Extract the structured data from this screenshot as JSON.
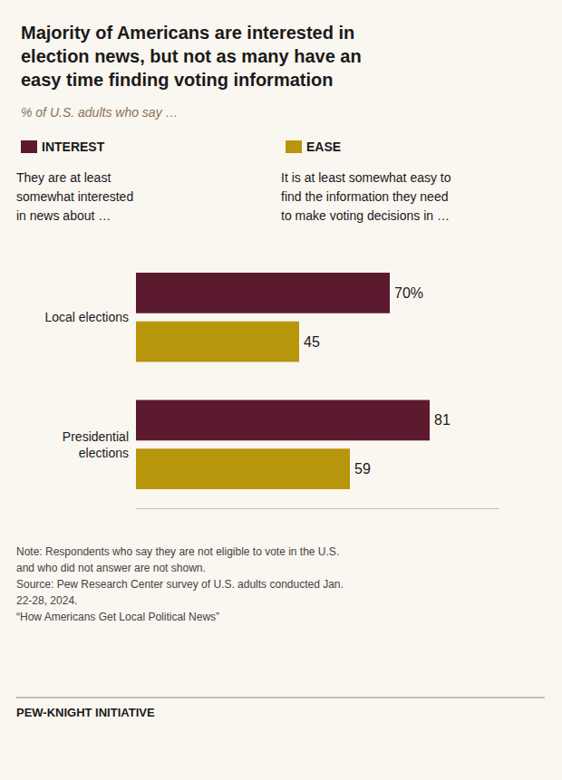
{
  "chart_data": {
    "type": "bar",
    "orientation": "horizontal",
    "title": "Majority of Americans are interested in\nelection news, but not as many have an\neasy time finding voting information",
    "subtitle": "% of U.S. adults who say …",
    "categories": [
      "Local elections",
      "Presidential\nelections"
    ],
    "series": [
      {
        "name": "INTEREST",
        "color": "#5C1A2E",
        "values": [
          70,
          81
        ],
        "value_labels": [
          "70%",
          "81"
        ]
      },
      {
        "name": "EASE",
        "color": "#B8960C",
        "values": [
          45,
          59
        ],
        "value_labels": [
          "45",
          "59"
        ]
      }
    ],
    "xlim": [
      0,
      100
    ],
    "data_labels": true,
    "tick_labels": "y",
    "grid": false,
    "legend": "top-left",
    "annotations": [
      "They are at least\nsomewhat interested\nin news about …",
      "It is at least somewhat easy to\nfind the information they need\nto make voting decisions in …",
      "Note: Respondents who say they are not eligible to vote in the U.S.\nand who did not answer are not shown.\nSource: Pew Research Center survey of U.S. adults conducted Jan.\n22-28, 2024.\n“How Americans Get Local Political News”",
      "PEW-KNIGHT INITIATIVE"
    ]
  }
}
